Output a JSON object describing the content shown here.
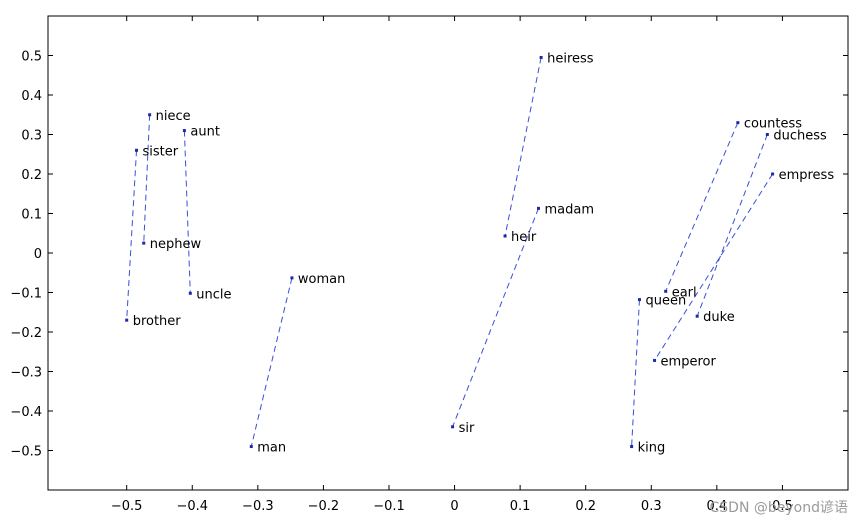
{
  "chart_data": {
    "type": "scatter",
    "title": "",
    "xlabel": "",
    "ylabel": "",
    "xlim": [
      -0.62,
      0.6
    ],
    "ylim": [
      -0.6,
      0.6
    ],
    "xticks": [
      -0.5,
      -0.4,
      -0.3,
      -0.2,
      -0.1,
      0,
      0.1,
      0.2,
      0.3,
      0.4,
      0.5
    ],
    "xtick_labels": [
      "−0.5",
      "−0.4",
      "−0.3",
      "−0.2",
      "−0.1",
      "0",
      "0.1",
      "0.2",
      "0.3",
      "0.4",
      "0.5"
    ],
    "yticks": [
      0.5,
      0.4,
      0.3,
      0.2,
      0.1,
      0,
      -0.1,
      -0.2,
      -0.3,
      -0.4,
      -0.5
    ],
    "ytick_labels": [
      "0.5",
      "0.4",
      "0.3",
      "0.2",
      "0.1",
      "0",
      "−0.1",
      "−0.2",
      "−0.3",
      "−0.4",
      "−0.5"
    ],
    "grid": false,
    "points": [
      {
        "label": "niece",
        "x": -0.465,
        "y": 0.35
      },
      {
        "label": "aunt",
        "x": -0.412,
        "y": 0.31
      },
      {
        "label": "sister",
        "x": -0.485,
        "y": 0.26
      },
      {
        "label": "nephew",
        "x": -0.474,
        "y": 0.025
      },
      {
        "label": "uncle",
        "x": -0.403,
        "y": -0.102
      },
      {
        "label": "brother",
        "x": -0.5,
        "y": -0.17
      },
      {
        "label": "woman",
        "x": -0.248,
        "y": -0.063
      },
      {
        "label": "man",
        "x": -0.31,
        "y": -0.49
      },
      {
        "label": "heiress",
        "x": 0.132,
        "y": 0.495
      },
      {
        "label": "madam",
        "x": 0.128,
        "y": 0.113
      },
      {
        "label": "heir",
        "x": 0.077,
        "y": 0.043
      },
      {
        "label": "sir",
        "x": -0.003,
        "y": -0.44
      },
      {
        "label": "countess",
        "x": 0.432,
        "y": 0.33
      },
      {
        "label": "duchess",
        "x": 0.477,
        "y": 0.3
      },
      {
        "label": "empress",
        "x": 0.485,
        "y": 0.2
      },
      {
        "label": "earl",
        "x": 0.322,
        "y": -0.097
      },
      {
        "label": "queen",
        "x": 0.282,
        "y": -0.118
      },
      {
        "label": "duke",
        "x": 0.37,
        "y": -0.16
      },
      {
        "label": "emperor",
        "x": 0.305,
        "y": -0.272
      },
      {
        "label": "king",
        "x": 0.27,
        "y": -0.49
      }
    ],
    "pairs": [
      [
        "niece",
        "nephew"
      ],
      [
        "aunt",
        "uncle"
      ],
      [
        "sister",
        "brother"
      ],
      [
        "woman",
        "man"
      ],
      [
        "heiress",
        "heir"
      ],
      [
        "madam",
        "sir"
      ],
      [
        "countess",
        "earl"
      ],
      [
        "duchess",
        "duke"
      ],
      [
        "empress",
        "emperor"
      ],
      [
        "queen",
        "king"
      ]
    ]
  },
  "watermark": "CSDN @beyond谚语"
}
